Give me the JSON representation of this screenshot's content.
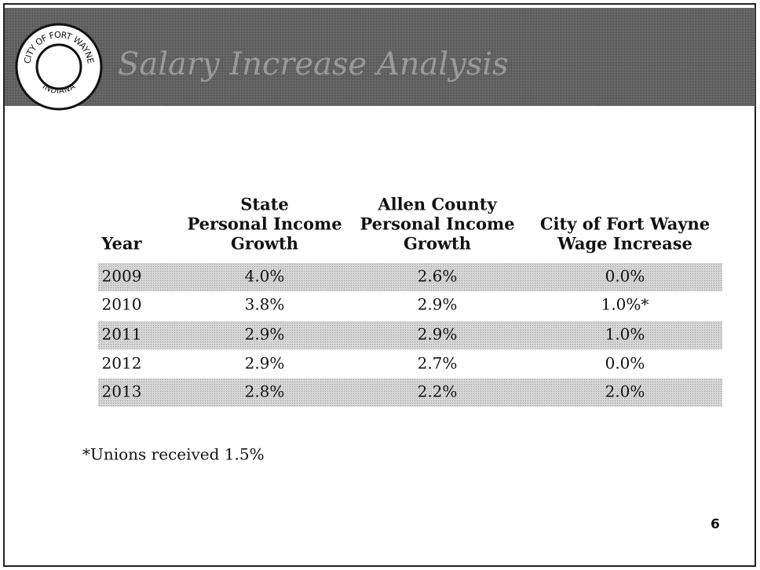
{
  "header": {
    "title": "Salary Increase Analysis",
    "logo_top": "CITY OF FORT WAYNE",
    "logo_bottom": "INDIANA"
  },
  "table": {
    "columns": [
      [
        "Year"
      ],
      [
        "State",
        "Personal Income",
        "Growth"
      ],
      [
        "Allen County",
        "Personal Income",
        "Growth"
      ],
      [
        "City of Fort Wayne",
        "Wage Increase"
      ]
    ],
    "rows": [
      [
        "2009",
        "4.0%",
        "2.6%",
        "0.0%"
      ],
      [
        "2010",
        "3.8%",
        "2.9%",
        "1.0%*"
      ],
      [
        "2011",
        "2.9%",
        "2.9%",
        "1.0%"
      ],
      [
        "2012",
        "2.9%",
        "2.7%",
        "0.0%"
      ],
      [
        "2013",
        "2.8%",
        "2.2%",
        "2.0%"
      ]
    ]
  },
  "footnote": "*Unions received 1.5%",
  "page_number": "6"
}
